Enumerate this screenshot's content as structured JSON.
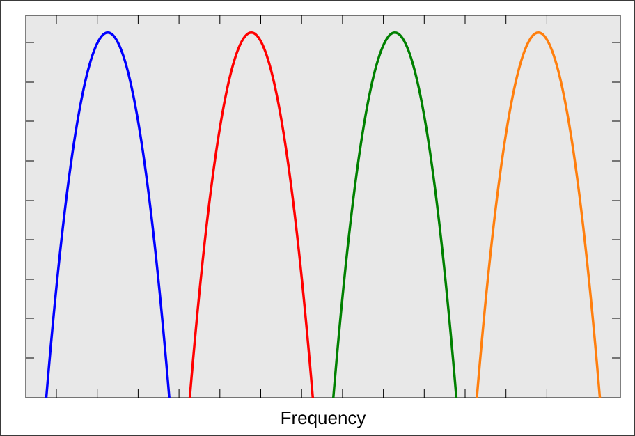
{
  "chart_data": {
    "type": "line",
    "title": "",
    "xlabel": "Frequency",
    "ylabel": "",
    "xlim": [
      0,
      14.5
    ],
    "ylim": [
      0,
      1
    ],
    "grid": false,
    "plot_background": "#e8e8e8",
    "series": [
      {
        "color": "#0000ff",
        "center": 2.0,
        "half_width": 1.5,
        "peak": 0.955
      },
      {
        "color": "#ff0000",
        "center": 5.5,
        "half_width": 1.5,
        "peak": 0.955
      },
      {
        "color": "#008000",
        "center": 9.0,
        "half_width": 1.5,
        "peak": 0.955
      },
      {
        "color": "#ff7f0e",
        "center": 12.5,
        "half_width": 1.5,
        "peak": 0.955
      }
    ]
  }
}
